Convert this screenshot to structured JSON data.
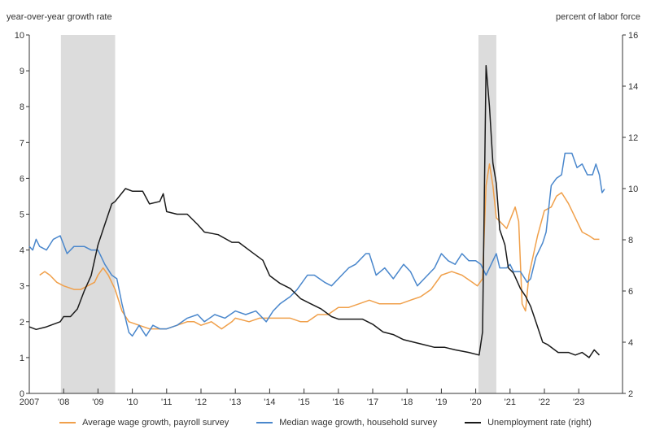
{
  "chart_data": {
    "type": "line",
    "left_axis_label": "year-over-year growth rate",
    "right_axis_label": "percent of labor force",
    "left_ylim": [
      0,
      10
    ],
    "right_ylim": [
      2,
      16
    ],
    "left_ticks": [
      0,
      1,
      2,
      3,
      4,
      5,
      6,
      7,
      8,
      9,
      10
    ],
    "right_ticks": [
      2,
      4,
      6,
      8,
      10,
      12,
      14,
      16
    ],
    "x_ticks": [
      {
        "year": 2007,
        "label": "2007"
      },
      {
        "year": 2008,
        "label": "'08"
      },
      {
        "year": 2009,
        "label": "'09"
      },
      {
        "year": 2010,
        "label": "'10"
      },
      {
        "year": 2011,
        "label": "'11"
      },
      {
        "year": 2012,
        "label": "'12"
      },
      {
        "year": 2013,
        "label": "'13"
      },
      {
        "year": 2014,
        "label": "'14"
      },
      {
        "year": 2015,
        "label": "'15"
      },
      {
        "year": 2016,
        "label": "'16"
      },
      {
        "year": 2017,
        "label": "'17"
      },
      {
        "year": 2018,
        "label": "'18"
      },
      {
        "year": 2019,
        "label": "'19"
      },
      {
        "year": 2020,
        "label": "'20"
      },
      {
        "year": 2021,
        "label": "'21"
      },
      {
        "year": 2022,
        "label": "'22"
      },
      {
        "year": 2023,
        "label": "'23"
      }
    ],
    "recessions": [
      [
        2007.92,
        2009.5
      ],
      [
        2020.08,
        2020.6
      ]
    ],
    "series": [
      {
        "name": "Average wage growth, payroll survey",
        "axis": "left",
        "color": "#f0a04b",
        "points": [
          [
            2007.3,
            3.3
          ],
          [
            2007.45,
            3.4
          ],
          [
            2007.6,
            3.3
          ],
          [
            2007.8,
            3.1
          ],
          [
            2008.0,
            3.0
          ],
          [
            2008.3,
            2.9
          ],
          [
            2008.5,
            2.9
          ],
          [
            2008.7,
            3.0
          ],
          [
            2008.9,
            3.1
          ],
          [
            2009.0,
            3.3
          ],
          [
            2009.15,
            3.5
          ],
          [
            2009.3,
            3.3
          ],
          [
            2009.5,
            2.9
          ],
          [
            2009.7,
            2.3
          ],
          [
            2009.9,
            2.0
          ],
          [
            2010.2,
            1.9
          ],
          [
            2010.5,
            1.8
          ],
          [
            2010.8,
            1.8
          ],
          [
            2011.0,
            1.8
          ],
          [
            2011.3,
            1.9
          ],
          [
            2011.6,
            2.0
          ],
          [
            2011.8,
            2.0
          ],
          [
            2012.0,
            1.9
          ],
          [
            2012.3,
            2.0
          ],
          [
            2012.6,
            1.8
          ],
          [
            2012.9,
            2.0
          ],
          [
            2013.0,
            2.1
          ],
          [
            2013.4,
            2.0
          ],
          [
            2013.7,
            2.1
          ],
          [
            2014.0,
            2.1
          ],
          [
            2014.3,
            2.1
          ],
          [
            2014.6,
            2.1
          ],
          [
            2014.9,
            2.0
          ],
          [
            2015.1,
            2.0
          ],
          [
            2015.4,
            2.2
          ],
          [
            2015.7,
            2.2
          ],
          [
            2016.0,
            2.4
          ],
          [
            2016.3,
            2.4
          ],
          [
            2016.6,
            2.5
          ],
          [
            2016.9,
            2.6
          ],
          [
            2017.2,
            2.5
          ],
          [
            2017.5,
            2.5
          ],
          [
            2017.8,
            2.5
          ],
          [
            2018.1,
            2.6
          ],
          [
            2018.4,
            2.7
          ],
          [
            2018.7,
            2.9
          ],
          [
            2019.0,
            3.3
          ],
          [
            2019.3,
            3.4
          ],
          [
            2019.6,
            3.3
          ],
          [
            2019.9,
            3.1
          ],
          [
            2020.05,
            3.0
          ],
          [
            2020.2,
            3.2
          ],
          [
            2020.3,
            5.8
          ],
          [
            2020.4,
            6.4
          ],
          [
            2020.5,
            5.8
          ],
          [
            2020.6,
            4.9
          ],
          [
            2020.9,
            4.6
          ],
          [
            2021.15,
            5.2
          ],
          [
            2021.25,
            4.8
          ],
          [
            2021.35,
            2.5
          ],
          [
            2021.45,
            2.3
          ],
          [
            2021.55,
            3.3
          ],
          [
            2021.8,
            4.4
          ],
          [
            2022.0,
            5.1
          ],
          [
            2022.2,
            5.2
          ],
          [
            2022.35,
            5.5
          ],
          [
            2022.5,
            5.6
          ],
          [
            2022.7,
            5.3
          ],
          [
            2022.9,
            4.9
          ],
          [
            2023.1,
            4.5
          ],
          [
            2023.3,
            4.4
          ],
          [
            2023.45,
            4.3
          ],
          [
            2023.6,
            4.3
          ]
        ]
      },
      {
        "name": "Median wage growth, household survey",
        "axis": "left",
        "color": "#4a87cc",
        "points": [
          [
            2007.0,
            4.1
          ],
          [
            2007.1,
            4.0
          ],
          [
            2007.2,
            4.3
          ],
          [
            2007.3,
            4.1
          ],
          [
            2007.5,
            4.0
          ],
          [
            2007.7,
            4.3
          ],
          [
            2007.9,
            4.4
          ],
          [
            2008.1,
            3.9
          ],
          [
            2008.3,
            4.1
          ],
          [
            2008.6,
            4.1
          ],
          [
            2008.8,
            4.0
          ],
          [
            2009.0,
            4.0
          ],
          [
            2009.2,
            3.6
          ],
          [
            2009.4,
            3.3
          ],
          [
            2009.55,
            3.2
          ],
          [
            2009.7,
            2.5
          ],
          [
            2009.9,
            1.7
          ],
          [
            2010.0,
            1.6
          ],
          [
            2010.2,
            1.9
          ],
          [
            2010.4,
            1.6
          ],
          [
            2010.6,
            1.9
          ],
          [
            2010.8,
            1.8
          ],
          [
            2011.0,
            1.8
          ],
          [
            2011.3,
            1.9
          ],
          [
            2011.6,
            2.1
          ],
          [
            2011.9,
            2.2
          ],
          [
            2012.1,
            2.0
          ],
          [
            2012.4,
            2.2
          ],
          [
            2012.7,
            2.1
          ],
          [
            2013.0,
            2.3
          ],
          [
            2013.3,
            2.2
          ],
          [
            2013.6,
            2.3
          ],
          [
            2013.9,
            2.0
          ],
          [
            2014.1,
            2.3
          ],
          [
            2014.3,
            2.5
          ],
          [
            2014.6,
            2.7
          ],
          [
            2014.8,
            2.9
          ],
          [
            2015.1,
            3.3
          ],
          [
            2015.3,
            3.3
          ],
          [
            2015.6,
            3.1
          ],
          [
            2015.8,
            3.0
          ],
          [
            2016.0,
            3.2
          ],
          [
            2016.3,
            3.5
          ],
          [
            2016.5,
            3.6
          ],
          [
            2016.8,
            3.9
          ],
          [
            2016.9,
            3.9
          ],
          [
            2017.1,
            3.3
          ],
          [
            2017.35,
            3.5
          ],
          [
            2017.6,
            3.2
          ],
          [
            2017.9,
            3.6
          ],
          [
            2018.1,
            3.4
          ],
          [
            2018.3,
            3.0
          ],
          [
            2018.5,
            3.2
          ],
          [
            2018.8,
            3.5
          ],
          [
            2019.0,
            3.9
          ],
          [
            2019.2,
            3.7
          ],
          [
            2019.4,
            3.6
          ],
          [
            2019.6,
            3.9
          ],
          [
            2019.8,
            3.7
          ],
          [
            2020.0,
            3.7
          ],
          [
            2020.15,
            3.6
          ],
          [
            2020.3,
            3.3
          ],
          [
            2020.45,
            3.6
          ],
          [
            2020.6,
            3.9
          ],
          [
            2020.7,
            3.5
          ],
          [
            2020.9,
            3.5
          ],
          [
            2021.0,
            3.6
          ],
          [
            2021.1,
            3.4
          ],
          [
            2021.3,
            3.4
          ],
          [
            2021.5,
            3.1
          ],
          [
            2021.6,
            3.2
          ],
          [
            2021.75,
            3.8
          ],
          [
            2021.95,
            4.2
          ],
          [
            2022.05,
            4.5
          ],
          [
            2022.2,
            5.8
          ],
          [
            2022.35,
            6.0
          ],
          [
            2022.5,
            6.1
          ],
          [
            2022.6,
            6.7
          ],
          [
            2022.8,
            6.7
          ],
          [
            2022.95,
            6.3
          ],
          [
            2023.1,
            6.4
          ],
          [
            2023.25,
            6.1
          ],
          [
            2023.4,
            6.1
          ],
          [
            2023.5,
            6.4
          ],
          [
            2023.6,
            6.1
          ],
          [
            2023.68,
            5.6
          ],
          [
            2023.75,
            5.7
          ]
        ]
      },
      {
        "name": "Unemployment rate (right)",
        "axis": "right",
        "color": "#1a1a1a",
        "points": [
          [
            2007.0,
            4.6
          ],
          [
            2007.2,
            4.5
          ],
          [
            2007.5,
            4.6
          ],
          [
            2007.9,
            4.8
          ],
          [
            2008.0,
            5.0
          ],
          [
            2008.2,
            5.0
          ],
          [
            2008.4,
            5.3
          ],
          [
            2008.6,
            6.0
          ],
          [
            2008.8,
            6.6
          ],
          [
            2009.0,
            7.8
          ],
          [
            2009.2,
            8.6
          ],
          [
            2009.4,
            9.4
          ],
          [
            2009.5,
            9.5
          ],
          [
            2009.8,
            10.0
          ],
          [
            2010.0,
            9.9
          ],
          [
            2010.3,
            9.9
          ],
          [
            2010.5,
            9.4
          ],
          [
            2010.8,
            9.5
          ],
          [
            2010.9,
            9.8
          ],
          [
            2011.0,
            9.1
          ],
          [
            2011.3,
            9.0
          ],
          [
            2011.6,
            9.0
          ],
          [
            2011.9,
            8.6
          ],
          [
            2012.1,
            8.3
          ],
          [
            2012.5,
            8.2
          ],
          [
            2012.9,
            7.9
          ],
          [
            2013.1,
            7.9
          ],
          [
            2013.5,
            7.5
          ],
          [
            2013.8,
            7.2
          ],
          [
            2014.0,
            6.6
          ],
          [
            2014.3,
            6.3
          ],
          [
            2014.6,
            6.1
          ],
          [
            2014.9,
            5.7
          ],
          [
            2015.2,
            5.5
          ],
          [
            2015.5,
            5.3
          ],
          [
            2015.8,
            5.0
          ],
          [
            2016.0,
            4.9
          ],
          [
            2016.4,
            4.9
          ],
          [
            2016.7,
            4.9
          ],
          [
            2017.0,
            4.7
          ],
          [
            2017.3,
            4.4
          ],
          [
            2017.6,
            4.3
          ],
          [
            2017.9,
            4.1
          ],
          [
            2018.2,
            4.0
          ],
          [
            2018.5,
            3.9
          ],
          [
            2018.8,
            3.8
          ],
          [
            2019.1,
            3.8
          ],
          [
            2019.4,
            3.7
          ],
          [
            2019.8,
            3.6
          ],
          [
            2020.1,
            3.5
          ],
          [
            2020.2,
            4.4
          ],
          [
            2020.3,
            14.8
          ],
          [
            2020.4,
            13.2
          ],
          [
            2020.5,
            11.0
          ],
          [
            2020.6,
            10.2
          ],
          [
            2020.7,
            8.4
          ],
          [
            2020.85,
            7.8
          ],
          [
            2020.95,
            6.9
          ],
          [
            2021.1,
            6.7
          ],
          [
            2021.3,
            6.1
          ],
          [
            2021.45,
            5.8
          ],
          [
            2021.6,
            5.4
          ],
          [
            2021.75,
            4.8
          ],
          [
            2021.95,
            4.0
          ],
          [
            2022.1,
            3.9
          ],
          [
            2022.4,
            3.6
          ],
          [
            2022.7,
            3.6
          ],
          [
            2022.9,
            3.5
          ],
          [
            2023.1,
            3.6
          ],
          [
            2023.3,
            3.4
          ],
          [
            2023.45,
            3.7
          ],
          [
            2023.6,
            3.5
          ]
        ]
      }
    ]
  }
}
